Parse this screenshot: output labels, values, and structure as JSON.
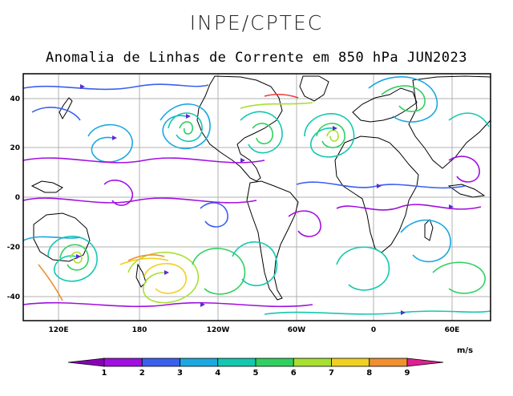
{
  "header": {
    "organization": "INPE/CPTEC",
    "title": "Anomalia de Linhas de Corrente em 850 hPa JUN2023"
  },
  "map": {
    "lat_ticks": [
      "40",
      "20",
      "0",
      "-20",
      "-40"
    ],
    "lon_ticks": [
      "120E",
      "180",
      "120W",
      "60W",
      "0",
      "60E"
    ],
    "grid": true
  },
  "colorbar": {
    "unit": "m/s",
    "labels": [
      "1",
      "2",
      "3",
      "4",
      "5",
      "6",
      "7",
      "8",
      "9"
    ],
    "colors": [
      "#8a00b8",
      "#a010e0",
      "#3a60f0",
      "#1aa8e0",
      "#12c8b0",
      "#30d060",
      "#a8e030",
      "#f0d020",
      "#f09030",
      "#f03838",
      "#e02090"
    ]
  }
}
